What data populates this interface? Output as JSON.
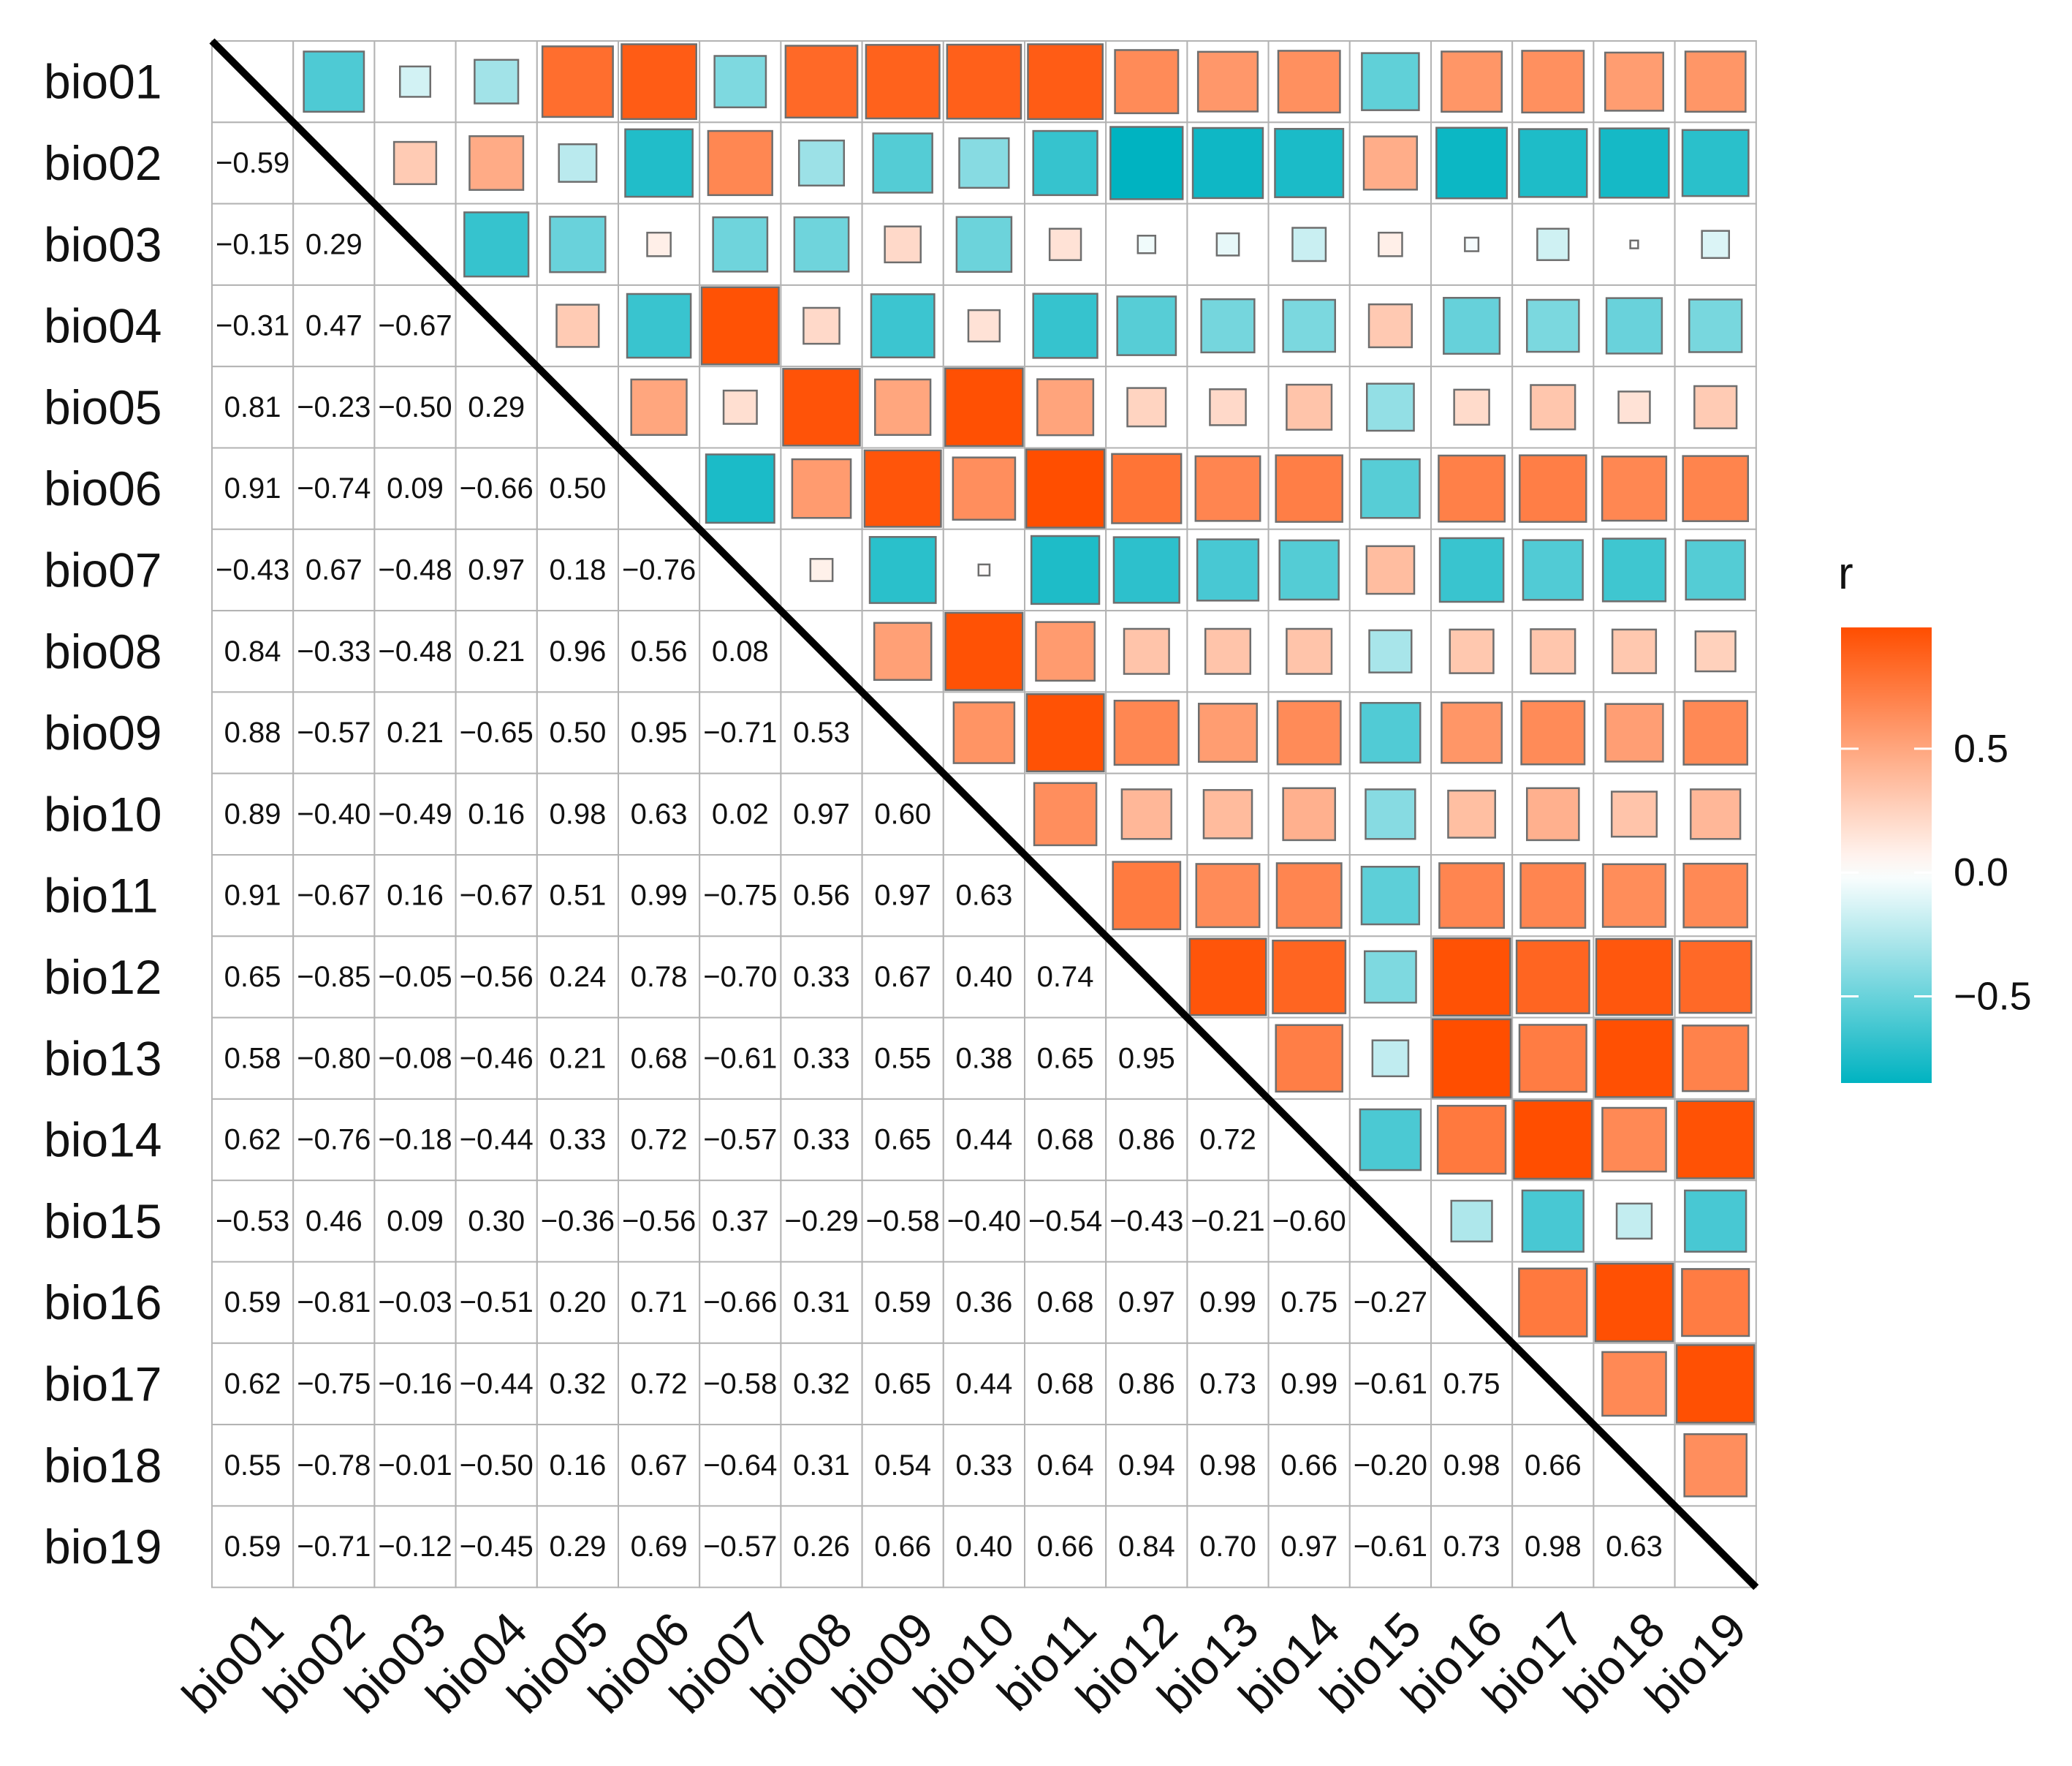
{
  "chart_data": {
    "type": "heatmap",
    "subtype": "mixed-correlation-matrix",
    "variables": [
      "bio01",
      "bio02",
      "bio03",
      "bio04",
      "bio05",
      "bio06",
      "bio07",
      "bio08",
      "bio09",
      "bio10",
      "bio11",
      "bio12",
      "bio13",
      "bio14",
      "bio15",
      "bio16",
      "bio17",
      "bio18",
      "bio19"
    ],
    "lower_triangle": "numbers",
    "upper_triangle": "squares",
    "diagonal": "line",
    "matrix": [
      [
        1,
        -0.59,
        -0.15,
        -0.31,
        0.81,
        0.91,
        -0.43,
        0.84,
        0.88,
        0.89,
        0.91,
        0.65,
        0.58,
        0.62,
        -0.53,
        0.59,
        0.62,
        0.55,
        0.59
      ],
      [
        -0.59,
        1,
        0.29,
        0.47,
        -0.23,
        -0.74,
        0.67,
        -0.33,
        -0.57,
        -0.4,
        -0.67,
        -0.85,
        -0.8,
        -0.76,
        0.46,
        -0.81,
        -0.75,
        -0.78,
        -0.71
      ],
      [
        -0.15,
        0.29,
        1,
        -0.67,
        -0.5,
        0.09,
        -0.48,
        -0.48,
        0.21,
        -0.49,
        0.16,
        -0.05,
        -0.08,
        -0.18,
        0.09,
        -0.03,
        -0.16,
        -0.01,
        -0.12
      ],
      [
        -0.31,
        0.47,
        -0.67,
        1,
        0.29,
        -0.66,
        0.97,
        0.21,
        -0.65,
        0.16,
        -0.67,
        -0.56,
        -0.46,
        -0.44,
        0.3,
        -0.51,
        -0.44,
        -0.5,
        -0.45
      ],
      [
        0.81,
        -0.23,
        -0.5,
        0.29,
        1,
        0.5,
        0.18,
        0.96,
        0.5,
        0.98,
        0.51,
        0.24,
        0.21,
        0.33,
        -0.36,
        0.2,
        0.32,
        0.16,
        0.29
      ],
      [
        0.91,
        -0.74,
        0.09,
        -0.66,
        0.5,
        1,
        -0.76,
        0.56,
        0.95,
        0.63,
        0.99,
        0.78,
        0.68,
        0.72,
        -0.56,
        0.71,
        0.72,
        0.67,
        0.69
      ],
      [
        -0.43,
        0.67,
        -0.48,
        0.97,
        0.18,
        -0.76,
        1,
        0.08,
        -0.71,
        0.02,
        -0.75,
        -0.7,
        -0.61,
        -0.57,
        0.37,
        -0.66,
        -0.58,
        -0.64,
        -0.57
      ],
      [
        0.84,
        -0.33,
        -0.48,
        0.21,
        0.96,
        0.56,
        0.08,
        1,
        0.53,
        0.97,
        0.56,
        0.33,
        0.33,
        0.33,
        -0.29,
        0.31,
        0.32,
        0.31,
        0.26
      ],
      [
        0.88,
        -0.57,
        0.21,
        -0.65,
        0.5,
        0.95,
        -0.71,
        0.53,
        1,
        0.6,
        0.97,
        0.67,
        0.55,
        0.65,
        -0.58,
        0.59,
        0.65,
        0.54,
        0.66
      ],
      [
        0.89,
        -0.4,
        -0.49,
        0.16,
        0.98,
        0.63,
        0.02,
        0.97,
        0.6,
        1,
        0.63,
        0.4,
        0.38,
        0.44,
        -0.4,
        0.36,
        0.44,
        0.33,
        0.4
      ],
      [
        0.91,
        -0.67,
        0.16,
        -0.67,
        0.51,
        0.99,
        -0.75,
        0.56,
        0.97,
        0.63,
        1,
        0.74,
        0.65,
        0.68,
        -0.54,
        0.68,
        0.68,
        0.64,
        0.66
      ],
      [
        0.65,
        -0.85,
        -0.05,
        -0.56,
        0.24,
        0.78,
        -0.7,
        0.33,
        0.67,
        0.4,
        0.74,
        1,
        0.95,
        0.86,
        -0.43,
        0.97,
        0.86,
        0.94,
        0.84
      ],
      [
        0.58,
        -0.8,
        -0.08,
        -0.46,
        0.21,
        0.68,
        -0.61,
        0.33,
        0.55,
        0.38,
        0.65,
        0.95,
        1,
        0.72,
        -0.21,
        0.99,
        0.73,
        0.98,
        0.7
      ],
      [
        0.62,
        -0.76,
        -0.18,
        -0.44,
        0.33,
        0.72,
        -0.57,
        0.33,
        0.65,
        0.44,
        0.68,
        0.86,
        0.72,
        1,
        -0.6,
        0.75,
        0.99,
        0.66,
        0.97
      ],
      [
        -0.53,
        0.46,
        0.09,
        0.3,
        -0.36,
        -0.56,
        0.37,
        -0.29,
        -0.58,
        -0.4,
        -0.54,
        -0.43,
        -0.21,
        -0.6,
        1,
        -0.27,
        -0.61,
        -0.2,
        -0.61
      ],
      [
        0.59,
        -0.81,
        -0.03,
        -0.51,
        0.2,
        0.71,
        -0.66,
        0.31,
        0.59,
        0.36,
        0.68,
        0.97,
        0.99,
        0.75,
        -0.27,
        1,
        0.75,
        0.98,
        0.73
      ],
      [
        0.62,
        -0.75,
        -0.16,
        -0.44,
        0.32,
        0.72,
        -0.58,
        0.32,
        0.65,
        0.44,
        0.68,
        0.86,
        0.73,
        0.99,
        -0.61,
        0.75,
        1,
        0.66,
        0.98
      ],
      [
        0.55,
        -0.78,
        -0.01,
        -0.5,
        0.16,
        0.67,
        -0.64,
        0.31,
        0.54,
        0.33,
        0.64,
        0.94,
        0.98,
        0.66,
        -0.2,
        0.98,
        0.66,
        1,
        0.63
      ],
      [
        0.59,
        -0.71,
        -0.12,
        -0.45,
        0.29,
        0.69,
        -0.57,
        0.26,
        0.66,
        0.4,
        0.66,
        0.84,
        0.7,
        0.97,
        -0.61,
        0.73,
        0.98,
        0.63,
        1
      ]
    ],
    "legend": {
      "title": "r",
      "ticks": [
        0.5,
        0.0,
        -0.5
      ],
      "tick_labels": [
        "0.5",
        "0.0",
        "−0.5"
      ],
      "range": [
        -0.85,
        0.99
      ],
      "low_color": "#00B3C1",
      "mid_color": "#FFFFFF",
      "high_color": "#FF4E00",
      "placement": "right"
    }
  }
}
